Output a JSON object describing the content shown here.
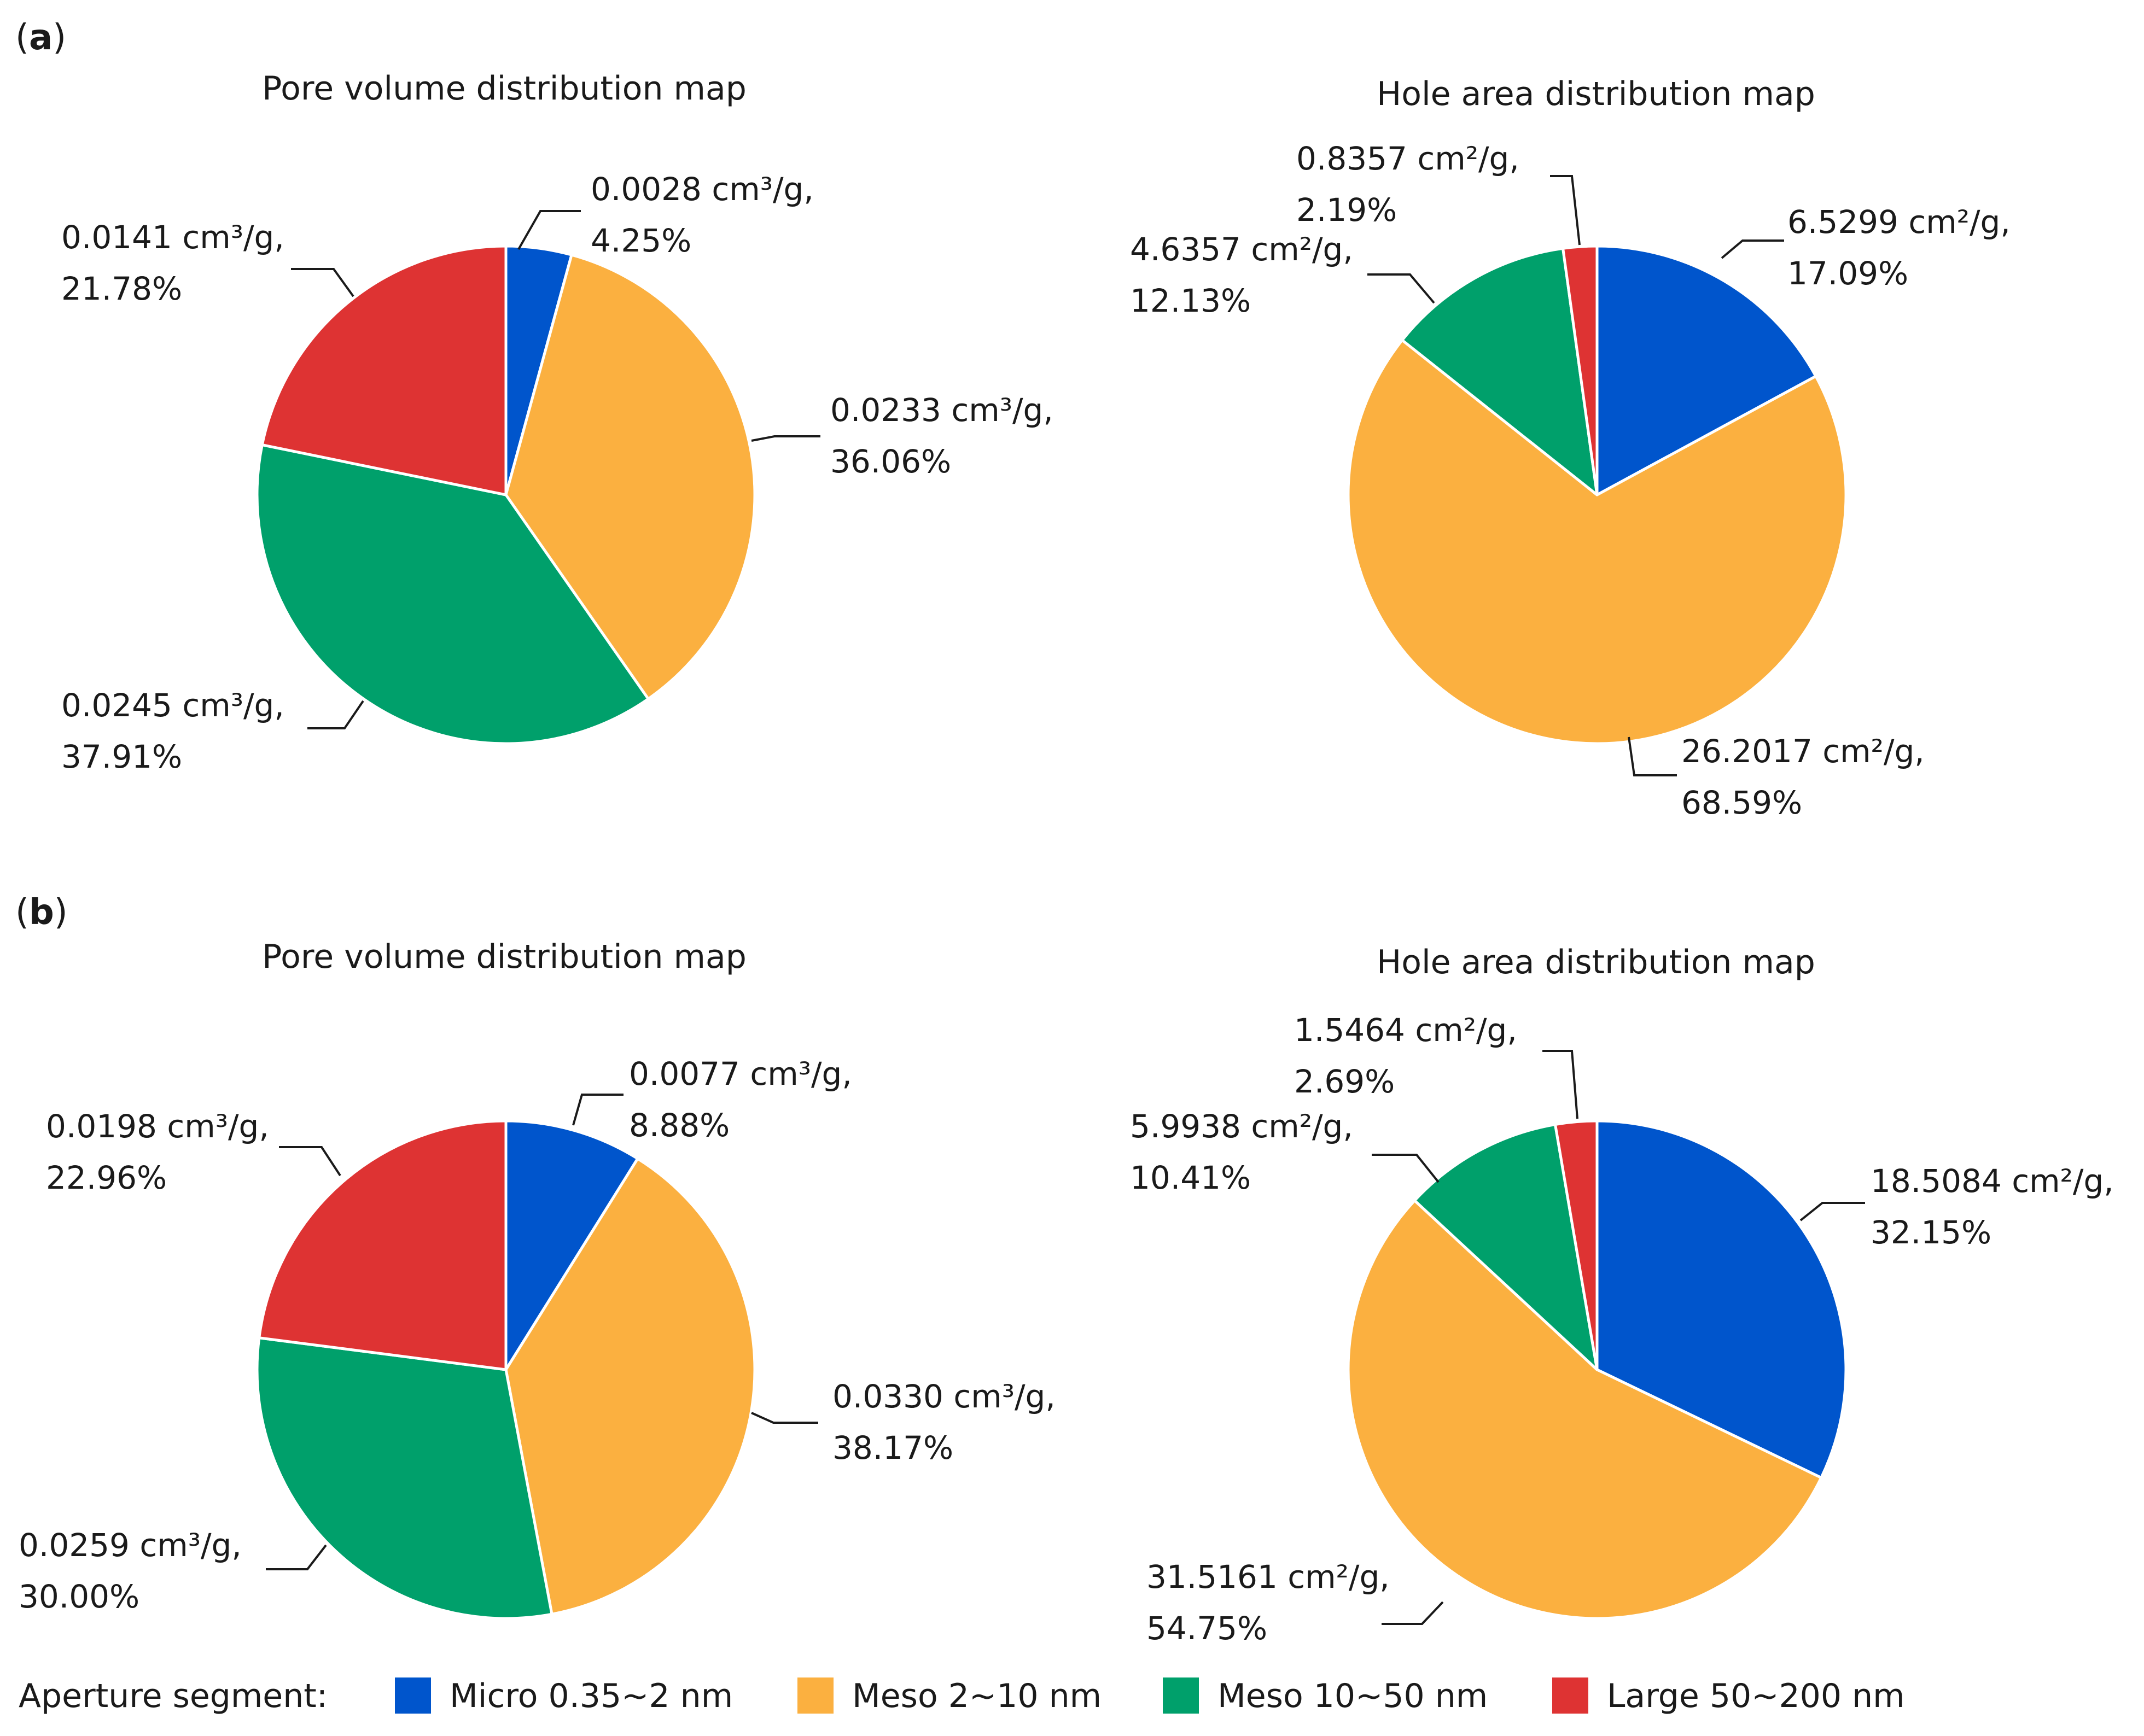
{
  "panels": [
    {
      "label_open": "(",
      "label_letter": "a",
      "label_close": ")"
    },
    {
      "label_open": "(",
      "label_letter": "b",
      "label_close": ")"
    }
  ],
  "colors": {
    "micro": "#0055cc",
    "meso_small": "#fbb040",
    "meso_large": "#00a06b",
    "large": "#de3333"
  },
  "chart_data": [
    {
      "type": "pie",
      "panel": "a",
      "title": "Pore volume distribution map",
      "unit": "cm³/g",
      "slices": [
        {
          "category": "Micro 0.35~2 nm",
          "value": 0.0028,
          "value_text": "0.0028 cm³/g,",
          "percent": 4.25,
          "percent_text": "4.25%"
        },
        {
          "category": "Meso 2~10 nm",
          "value": 0.0233,
          "value_text": "0.0233 cm³/g,",
          "percent": 36.06,
          "percent_text": "36.06%"
        },
        {
          "category": "Meso 10~50 nm",
          "value": 0.0245,
          "value_text": "0.0245 cm³/g,",
          "percent": 37.91,
          "percent_text": "37.91%"
        },
        {
          "category": "Large 50~200 nm",
          "value": 0.0141,
          "value_text": "0.0141 cm³/g,",
          "percent": 21.78,
          "percent_text": "21.78%"
        }
      ]
    },
    {
      "type": "pie",
      "panel": "a",
      "title": "Hole area distribution map",
      "unit": "cm²/g",
      "slices": [
        {
          "category": "Micro 0.35~2 nm",
          "value": 6.5299,
          "value_text": "6.5299 cm²/g,",
          "percent": 17.09,
          "percent_text": "17.09%"
        },
        {
          "category": "Meso 2~10 nm",
          "value": 26.2017,
          "value_text": "26.2017 cm²/g,",
          "percent": 68.59,
          "percent_text": "68.59%"
        },
        {
          "category": "Meso 10~50 nm",
          "value": 4.6357,
          "value_text": "4.6357 cm²/g,",
          "percent": 12.13,
          "percent_text": "12.13%"
        },
        {
          "category": "Large 50~200 nm",
          "value": 0.8357,
          "value_text": "0.8357 cm²/g,",
          "percent": 2.19,
          "percent_text": "2.19%"
        }
      ]
    },
    {
      "type": "pie",
      "panel": "b",
      "title": "Pore volume distribution map",
      "unit": "cm³/g",
      "slices": [
        {
          "category": "Micro 0.35~2 nm",
          "value": 0.0077,
          "value_text": "0.0077 cm³/g,",
          "percent": 8.88,
          "percent_text": "8.88%"
        },
        {
          "category": "Meso 2~10 nm",
          "value": 0.033,
          "value_text": "0.0330 cm³/g,",
          "percent": 38.17,
          "percent_text": "38.17%"
        },
        {
          "category": "Meso 10~50 nm",
          "value": 0.0259,
          "value_text": "0.0259 cm³/g,",
          "percent": 30.0,
          "percent_text": "30.00%"
        },
        {
          "category": "Large 50~200 nm",
          "value": 0.0198,
          "value_text": "0.0198 cm³/g,",
          "percent": 22.96,
          "percent_text": "22.96%"
        }
      ]
    },
    {
      "type": "pie",
      "panel": "b",
      "title": "Hole area distribution map",
      "unit": "cm²/g",
      "slices": [
        {
          "category": "Micro 0.35~2 nm",
          "value": 18.5084,
          "value_text": "18.5084 cm²/g,",
          "percent": 32.15,
          "percent_text": "32.15%"
        },
        {
          "category": "Meso 2~10 nm",
          "value": 31.5161,
          "value_text": "31.5161 cm²/g,",
          "percent": 54.75,
          "percent_text": "54.75%"
        },
        {
          "category": "Meso 10~50 nm",
          "value": 5.9938,
          "value_text": "5.9938 cm²/g,",
          "percent": 10.41,
          "percent_text": "10.41%"
        },
        {
          "category": "Large 50~200 nm",
          "value": 1.5464,
          "value_text": "1.5464 cm²/g,",
          "percent": 2.69,
          "percent_text": "2.69%"
        }
      ]
    }
  ],
  "legend": {
    "title": "Aperture segment:",
    "items": [
      {
        "label": "Micro 0.35~2 nm",
        "color": "#0055cc"
      },
      {
        "label": "Meso 2~10 nm",
        "color": "#fbb040"
      },
      {
        "label": "Meso 10~50 nm",
        "color": "#00a06b"
      },
      {
        "label": "Large 50~200 nm",
        "color": "#de3333"
      }
    ]
  }
}
